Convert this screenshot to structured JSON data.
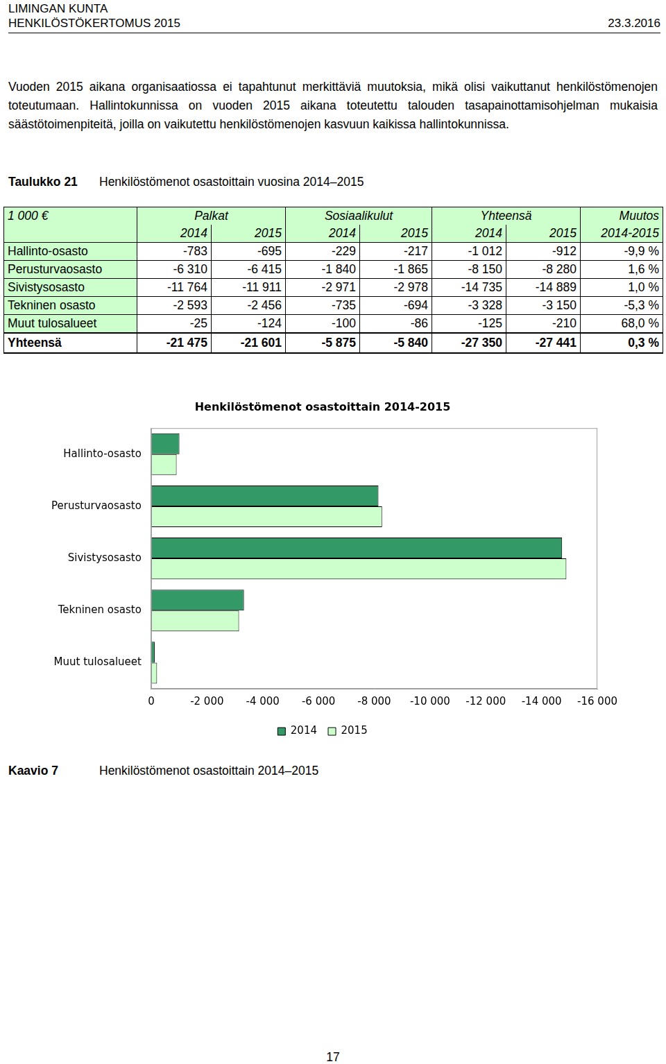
{
  "header": {
    "organisation": "LIMINGAN KUNTA",
    "document": "HENKILÖSTÖKERTOMUS 2015",
    "date": "23.3.2016"
  },
  "intro": "Vuoden 2015 aikana organisaatiossa ei tapahtunut merkittäviä muutoksia, mikä olisi vaikuttanut henkilöstömenojen toteutumaan. Hallintokunnissa on vuoden 2015 aikana toteutettu talouden tasapainottamisohjelman mukaisia säästötoimenpiteitä, joilla on vaikutettu henkilöstömenojen kasvuun kaikissa hallintokunnissa.",
  "table": {
    "caption_number": "Taulukko 21",
    "caption": "Henkilöstömenot osastoittain vuosina 2014–2015",
    "header_top": [
      "1 000 €",
      "Palkat",
      "Sosiaalikulut",
      "Yhteensä",
      "Muutos"
    ],
    "header_years": [
      "2014",
      "2015",
      "2014",
      "2015",
      "2014",
      "2015",
      "2014-2015"
    ],
    "rows": [
      [
        "Hallinto-osasto",
        "-783",
        "-695",
        "-229",
        "-217",
        "-1 012",
        "-912",
        "-9,9 %"
      ],
      [
        "Perusturvaosasto",
        "-6 310",
        "-6 415",
        "-1 840",
        "-1 865",
        "-8 150",
        "-8 280",
        "1,6 %"
      ],
      [
        "Sivistysosasto",
        "-11 764",
        "-11 911",
        "-2 971",
        "-2 978",
        "-14 735",
        "-14 889",
        "1,0 %"
      ],
      [
        "Tekninen osasto",
        "-2 593",
        "-2 456",
        "-735",
        "-694",
        "-3 328",
        "-3 150",
        "-5,3 %"
      ],
      [
        "Muut tulosalueet",
        "-25",
        "-124",
        "-100",
        "-86",
        "-125",
        "-210",
        "68,0 %"
      ]
    ],
    "total": [
      "Yhteensä",
      "-21 475",
      "-21 601",
      "-5 875",
      "-5 840",
      "-27 350",
      "-27 441",
      "0,3 %"
    ]
  },
  "chart_data": {
    "type": "bar",
    "orientation": "horizontal",
    "title": "Henkilöstömenot osastoittain 2014-2015",
    "categories": [
      "Hallinto-osasto",
      "Perusturvaosasto",
      "Sivistysosasto",
      "Tekninen osasto",
      "Muut tulosalueet"
    ],
    "series": [
      {
        "name": "2014",
        "color": "#339966",
        "values": [
          -1012,
          -8150,
          -14735,
          -3328,
          -125
        ]
      },
      {
        "name": "2015",
        "color": "#ccffcc",
        "values": [
          -912,
          -8280,
          -14889,
          -3150,
          -210
        ]
      }
    ],
    "xlim": [
      0,
      -16000
    ],
    "xticks": [
      0,
      {
        "value": -2000,
        "label": "-2 000"
      },
      {
        "value": -4000,
        "label": "-4 000"
      },
      {
        "value": -6000,
        "label": "-6 000"
      },
      {
        "value": -8000,
        "label": "-8 000"
      },
      {
        "value": -10000,
        "label": "-10 000"
      },
      {
        "value": -12000,
        "label": "-12 000"
      },
      {
        "value": -14000,
        "label": "-14 000"
      },
      {
        "value": -16000,
        "label": "-16 000"
      }
    ],
    "grid": false,
    "legend": "bottom"
  },
  "figure_caption": {
    "number": "Kaavio 7",
    "text": "Henkilöstömenot osastoittain 2014–2015"
  },
  "page_number": "17"
}
